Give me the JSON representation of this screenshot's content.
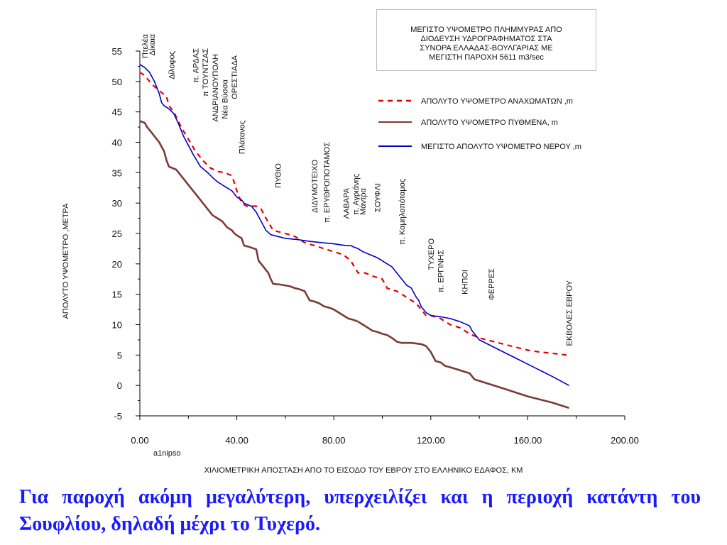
{
  "chart_data": {
    "type": "line",
    "title": "ΜΕΓΙΣΤΟ ΥΨΟΜΕΤΡΟ ΠΛΗΜΜΥΡΑΣ   ΑΠΟ\nΔΙΟΔΕΥΣΗ  ΥΔΡΟΓΡΑΦΗΜΑΤΟΣ   ΣΤΑ\nΣΥΝΟΡΑ ΕΛΛΑΔΑΣ-ΒΟΥΛΓΑΡΙΑΣ  ΜΕ\nΜΕΓΙΣΤΗ  ΠΑΡΟΧΗ    5611   m3/sec",
    "xlabel": "ΧΙΛΙΟΜΕΤΡΙΚΗ ΑΠΟΣΤΑΣΗ ΑΠΟ ΤΟ  ΕΙΣΟΔΟ ΤΟΥ ΕΒΡΟΥ ΣΤΟ ΕΛΛΗΝΙΚΟ ΕΔΑΦΟΣ, ΚΜ",
    "ylabel": "ΑΠΟΛΥΤΟ  ΥΨΟΜΕΤΡΟ  ,ΜΕΤΡΑ",
    "xlim": [
      0,
      200
    ],
    "ylim": [
      -5,
      55
    ],
    "xticks": [
      "0.00",
      "40.00",
      "80.00",
      "120.00",
      "160.00",
      "200.00"
    ],
    "yticks": [
      "-5",
      "0",
      "5",
      "10",
      "15",
      "20",
      "25",
      "30",
      "35",
      "40",
      "45",
      "50",
      "55"
    ],
    "grid": false,
    "legend_position": "top-right",
    "series": [
      {
        "name": "ΑΠΟΛΥΤΟ  ΥΨΟΜΕΤΡΟ   ΑΝΑΧΩΜΑΤΩΝ ,m",
        "color": "#e60000",
        "style": "dashed",
        "x": [
          0,
          2,
          5,
          8,
          11,
          12,
          14,
          17,
          20,
          23,
          26,
          29,
          32,
          35,
          38,
          40,
          42,
          44,
          46,
          48,
          50,
          52,
          55,
          60,
          64,
          68,
          72,
          76,
          80,
          84,
          87,
          90,
          93,
          96,
          100,
          102,
          106,
          110,
          114,
          118,
          120,
          124,
          128,
          132,
          136,
          140,
          145,
          150,
          155,
          160,
          165,
          170,
          176
        ],
        "y": [
          51.5,
          51,
          49.5,
          48.5,
          47.5,
          46,
          45,
          42.5,
          40.5,
          38.5,
          37,
          35.8,
          35.2,
          35,
          34.5,
          32,
          30,
          29.5,
          29.5,
          29.5,
          29,
          27.5,
          25.5,
          25,
          24.5,
          23.5,
          23,
          22.5,
          22,
          21.5,
          20.5,
          18.5,
          18.5,
          18,
          17.5,
          16,
          15.5,
          14.5,
          13.5,
          11.5,
          11.5,
          11,
          10,
          9.5,
          8.5,
          7.8,
          7.3,
          6.8,
          6.3,
          5.8,
          5.5,
          5.3,
          5
        ]
      },
      {
        "name": "ΑΠΟΛΥΤΟ  ΥΨΟΜΕΤΡΟ ΠΥΘΜΕΝΑ, m",
        "color": "#7a3b34",
        "style": "solid",
        "x": [
          0,
          2,
          3,
          5,
          8,
          10,
          11,
          12,
          15,
          18,
          21,
          24,
          27,
          30,
          32,
          34,
          35,
          36,
          38,
          39,
          40,
          42,
          43,
          45,
          48,
          49,
          50,
          51,
          52,
          53,
          54,
          55,
          58,
          62,
          64,
          66,
          68,
          70,
          72,
          74,
          76,
          78,
          80,
          82,
          84,
          86,
          88,
          90,
          92,
          94,
          96,
          98,
          100,
          102,
          104,
          106,
          108,
          112,
          116,
          118,
          120,
          122,
          124,
          126,
          128,
          132,
          136,
          138,
          142,
          150,
          160,
          170,
          177
        ],
        "y": [
          43.5,
          43.2,
          42.5,
          41.5,
          40,
          38.5,
          37,
          36,
          35.5,
          34,
          32.5,
          31,
          29.5,
          28,
          27.5,
          27,
          26.5,
          26,
          25.5,
          25,
          24.7,
          24.2,
          23,
          22.8,
          22.4,
          20.5,
          20,
          19.5,
          19,
          18.5,
          17.5,
          16.7,
          16.6,
          16.3,
          16,
          15.8,
          15.5,
          14,
          13.8,
          13.5,
          13,
          12.8,
          12.5,
          12,
          11.5,
          11,
          10.8,
          10.5,
          10,
          9.5,
          9,
          8.8,
          8.5,
          8.3,
          7.8,
          7.2,
          7,
          7,
          6.8,
          6.5,
          5.5,
          4,
          3.8,
          3.2,
          3,
          2.5,
          2,
          1,
          0.5,
          -0.5,
          -1.8,
          -2.8,
          -3.7
        ]
      },
      {
        "name": "ΜΕΓΙΣΤΟ  ΑΠΟΛΥΤΟ ΥΨΟΜΕΤΡΟ  ΝΕΡΟΥ ,m",
        "color": "#0000cc",
        "style": "solid",
        "x": [
          0,
          2,
          4,
          6,
          8,
          9,
          10,
          12,
          14,
          16,
          18,
          20,
          22,
          25,
          28,
          30,
          32,
          34,
          36,
          38,
          40,
          42,
          43,
          44,
          46,
          48,
          50,
          52,
          54,
          57,
          60,
          65,
          70,
          75,
          80,
          85,
          87,
          88,
          90,
          92,
          95,
          98,
          100,
          102,
          104,
          106,
          108,
          110,
          112,
          114,
          115,
          116,
          118,
          120,
          124,
          128,
          132,
          136,
          137,
          138,
          140,
          145,
          150,
          155,
          160,
          165,
          170,
          177
        ],
        "y": [
          52.8,
          52.3,
          51.5,
          50,
          48,
          46.5,
          46,
          45.5,
          44.7,
          43,
          41,
          39.5,
          38,
          36,
          35,
          34.2,
          33.5,
          33,
          32.5,
          32,
          31,
          30.5,
          30,
          29.8,
          29.5,
          28.5,
          27,
          25.5,
          24.8,
          24.5,
          24.2,
          24,
          23.7,
          23.5,
          23.3,
          23,
          23,
          22.8,
          22.5,
          22,
          21.5,
          21,
          20.5,
          20,
          19.5,
          18.5,
          17.5,
          16.5,
          16,
          14.5,
          14,
          13,
          12,
          11.5,
          11.3,
          11,
          10.5,
          9.8,
          9,
          8.5,
          7.5,
          6.5,
          5.5,
          4.5,
          3.5,
          2.5,
          1.5,
          0
        ]
      }
    ],
    "annotations": [
      {
        "text": "Πτελέα",
        "x": 2
      },
      {
        "text": "Δίκαια",
        "x": 5
      },
      {
        "text": "Δίλοφος",
        "x": 13
      },
      {
        "text": "π. ΑΡΔΑΣ",
        "x": 23
      },
      {
        "text": "π   ΤΟΥΝΤΖΑΣ",
        "x": 27
      },
      {
        "text": "ΑΝΔΡΙΑΝΟΥΠΟΛΗ",
        "x": 31
      },
      {
        "text": "Νέα  Βύσσα",
        "x": 35
      },
      {
        "text": "ΟΡΕΣΤΙΑΔΑ",
        "x": 39
      },
      {
        "text": "Πλάτανος",
        "x": 42
      },
      {
        "text": "ΠΥΘΙΟ",
        "x": 57
      },
      {
        "text": "ΔΙΔΥΜΟΤΕΙΧΟ",
        "x": 72
      },
      {
        "text": "π. ΕΡΥΘΡΟΠΟΤΑΜΟΣ",
        "x": 77
      },
      {
        "text": "ΛΑΒΑΡΑ",
        "x": 85
      },
      {
        "text": "π. Αγριάνης",
        "x": 89
      },
      {
        "text": "Μάντρα",
        "x": 92
      },
      {
        "text": "ΣΟΥΦΛΙ",
        "x": 98
      },
      {
        "text": "π.  Καμηλοπόταμος",
        "x": 108
      },
      {
        "text": "ΤΥΧΕΡΟ",
        "x": 120
      },
      {
        "text": "π. ΕΡΓΙΝΗΣ",
        "x": 124
      },
      {
        "text": "ΚΗΠΟΙ",
        "x": 134
      },
      {
        "text": "ΦΕΡΡΕΣ",
        "x": 145
      },
      {
        "text": "ΕΚΒΟΛΕΣ  ΕΒΡΟΥ",
        "x": 177
      }
    ],
    "note": "a1nipso"
  },
  "caption": "Για παροχή ακόμη μεγαλύτερη, υπερχειλίζει και η περιοχή κατάντη του Σουφλίου, δηλαδή  μέχρι το Τυχερό."
}
